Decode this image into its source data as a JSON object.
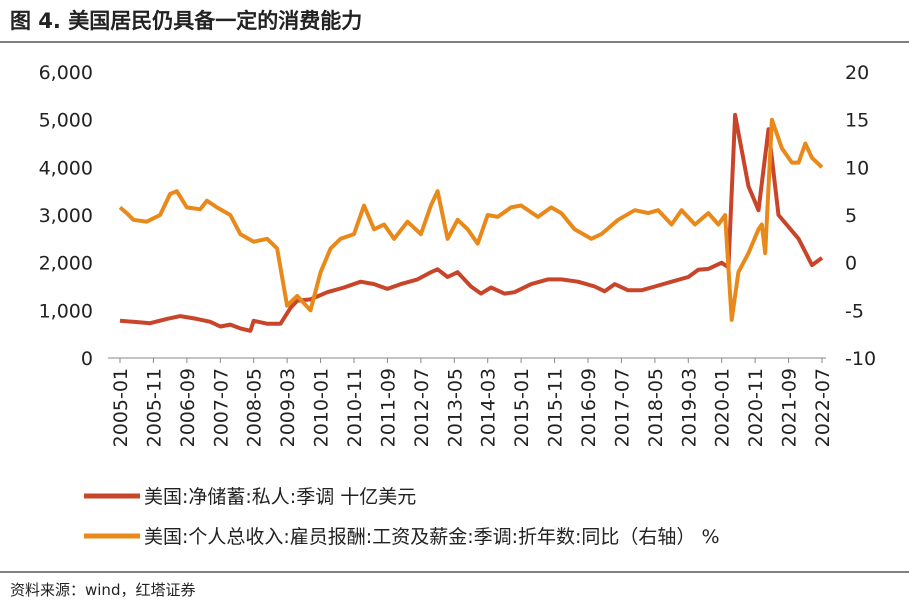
{
  "chart_data": {
    "type": "line",
    "title": "图 4. 美国居民仍具备一定的消费能力",
    "source": "资料来源：wind，红塔证券",
    "xlim": [
      "2005-01",
      "2022-07"
    ],
    "xticks": [
      "2005-01",
      "2005-11",
      "2006-09",
      "2007-07",
      "2008-05",
      "2009-03",
      "2010-01",
      "2010-11",
      "2011-09",
      "2012-07",
      "2013-05",
      "2014-03",
      "2015-01",
      "2015-11",
      "2016-09",
      "2017-07",
      "2018-05",
      "2019-03",
      "2020-01",
      "2020-11",
      "2021-09",
      "2022-07"
    ],
    "ylim": [
      0,
      6000
    ],
    "yticks": [
      0,
      {
        "value": 1000,
        "label": "1,000"
      },
      {
        "value": 2000,
        "label": "2,000"
      },
      {
        "value": 3000,
        "label": "3,000"
      },
      {
        "value": 4000,
        "label": "4,000"
      },
      {
        "value": 5000,
        "label": "5,000"
      },
      {
        "value": 6000,
        "label": "6,000"
      }
    ],
    "y2lim": [
      -10,
      20
    ],
    "y2ticks": [
      -10,
      -5,
      0,
      5,
      10,
      15,
      20
    ],
    "legend": "bottom",
    "series": [
      {
        "name": "美国:净储蓄:私人:季调 十亿美元",
        "color": "#c8452a",
        "axis": "y",
        "x": [
          "2005-01",
          "2005-05",
          "2005-10",
          "2006-03",
          "2006-07",
          "2006-12",
          "2007-04",
          "2007-07",
          "2007-10",
          "2008-01",
          "2008-04",
          "2008-05",
          "2008-09",
          "2009-01",
          "2009-04",
          "2009-06",
          "2009-10",
          "2010-03",
          "2010-08",
          "2011-01",
          "2011-05",
          "2011-09",
          "2012-01",
          "2012-06",
          "2012-10",
          "2012-12",
          "2013-03",
          "2013-06",
          "2013-10",
          "2014-01",
          "2014-04",
          "2014-08",
          "2014-11",
          "2015-04",
          "2015-09",
          "2016-01",
          "2016-06",
          "2016-11",
          "2017-02",
          "2017-05",
          "2017-09",
          "2018-01",
          "2018-05",
          "2018-10",
          "2019-03",
          "2019-06",
          "2019-09",
          "2020-01",
          "2020-03",
          "2020-05",
          "2020-09",
          "2020-12",
          "2021-03",
          "2021-06",
          "2021-12",
          "2022-04",
          "2022-07"
        ],
        "values": [
          780,
          760,
          730,
          820,
          880,
          820,
          760,
          660,
          700,
          620,
          570,
          780,
          720,
          720,
          1050,
          1200,
          1230,
          1380,
          1480,
          1600,
          1550,
          1450,
          1550,
          1650,
          1800,
          1860,
          1700,
          1800,
          1500,
          1350,
          1480,
          1350,
          1380,
          1550,
          1650,
          1650,
          1600,
          1500,
          1400,
          1550,
          1420,
          1420,
          1500,
          1600,
          1700,
          1850,
          1870,
          2000,
          1900,
          5100,
          3600,
          3100,
          4800,
          3000,
          2500,
          1950,
          2100
        ]
      },
      {
        "name": "美国:个人总收入:雇员报酬:工资及薪金:季调:折年数:同比（右轴） %",
        "color": "#e8891a",
        "axis": "y2",
        "x": [
          "2005-01",
          "2005-03",
          "2005-05",
          "2005-09",
          "2006-01",
          "2006-04",
          "2006-06",
          "2006-09",
          "2007-01",
          "2007-03",
          "2007-06",
          "2007-10",
          "2008-01",
          "2008-05",
          "2008-09",
          "2008-12",
          "2009-03",
          "2009-06",
          "2009-10",
          "2010-01",
          "2010-04",
          "2010-07",
          "2010-11",
          "2011-02",
          "2011-05",
          "2011-08",
          "2011-11",
          "2012-03",
          "2012-07",
          "2012-10",
          "2012-12",
          "2013-03",
          "2013-06",
          "2013-09",
          "2013-12",
          "2014-03",
          "2014-06",
          "2014-10",
          "2015-01",
          "2015-06",
          "2015-10",
          "2016-01",
          "2016-05",
          "2016-10",
          "2017-01",
          "2017-06",
          "2017-11",
          "2018-03",
          "2018-06",
          "2018-10",
          "2019-01",
          "2019-05",
          "2019-09",
          "2019-12",
          "2020-02",
          "2020-04",
          "2020-06",
          "2020-09",
          "2020-12",
          "2021-01",
          "2021-02",
          "2021-04",
          "2021-07",
          "2021-10",
          "2021-12",
          "2022-02",
          "2022-04",
          "2022-07"
        ],
        "values": [
          5.8,
          5.2,
          4.5,
          4.3,
          5.0,
          7.2,
          7.5,
          5.8,
          5.6,
          6.5,
          5.8,
          5.0,
          3.0,
          2.2,
          2.5,
          1.5,
          -4.5,
          -3.5,
          -5.0,
          -1.0,
          1.5,
          2.5,
          3.0,
          6.0,
          3.5,
          4.0,
          2.5,
          4.3,
          3.0,
          6.0,
          7.5,
          2.5,
          4.5,
          3.5,
          2.0,
          5.0,
          4.8,
          5.8,
          6.0,
          4.8,
          5.8,
          5.2,
          3.5,
          2.5,
          3.0,
          4.5,
          5.5,
          5.2,
          5.5,
          4.0,
          5.5,
          4.0,
          5.2,
          4.0,
          5.0,
          -6.0,
          -1.0,
          1.0,
          3.5,
          4.0,
          1.0,
          15.0,
          12.0,
          10.5,
          10.5,
          12.5,
          11.0,
          10.0
        ]
      }
    ]
  }
}
